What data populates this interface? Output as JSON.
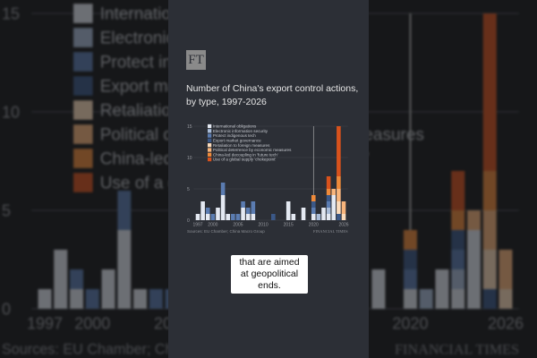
{
  "brand": {
    "logo": "FT",
    "footer": "FINANCIAL TIMES"
  },
  "caption": "that are aimed at geopolitical ends.",
  "chart_data": {
    "type": "bar",
    "stacked": true,
    "title": "Number of China's export control actions, by type, 1997-2026",
    "source": "Sources: EU Chamber; China Macro Group",
    "xlabel": "",
    "ylabel": "",
    "ylim": [
      0,
      15
    ],
    "yticks": [
      "0",
      "5",
      "10",
      "15"
    ],
    "xticks": [
      "1997",
      "2000",
      "2005",
      "2010",
      "2015",
      "2020",
      "2026"
    ],
    "grid": true,
    "legend_position": "top-left",
    "marker_year": 2020,
    "series": [
      {
        "name": "International obligations",
        "color": "#e4e9f2"
      },
      {
        "name": "Electronic information security",
        "color": "#a9bcd8"
      },
      {
        "name": "Protect indigenous tech",
        "color": "#5b7cb1"
      },
      {
        "name": "Export market governance",
        "color": "#3b5887"
      },
      {
        "name": "Retaliation to foreign measures",
        "color": "#fcdcbc"
      },
      {
        "name": "Political deterrence by economic measures",
        "color": "#f8b57c"
      },
      {
        "name": "China-led decoupling in 'future tech'",
        "color": "#ef8a3a"
      },
      {
        "name": "Use of a global supply 'chokepoint'",
        "color": "#d8521c"
      }
    ],
    "years": [
      1997,
      1998,
      1999,
      2000,
      2001,
      2002,
      2003,
      2004,
      2005,
      2006,
      2007,
      2008,
      2009,
      2010,
      2011,
      2012,
      2013,
      2014,
      2015,
      2016,
      2017,
      2018,
      2019,
      2020,
      2021,
      2022,
      2023,
      2024,
      2025,
      2026
    ],
    "values": [
      [
        1,
        0,
        0,
        0,
        0,
        0,
        0,
        0
      ],
      [
        3,
        0,
        0,
        0,
        0,
        0,
        0,
        0
      ],
      [
        1,
        0,
        1,
        0,
        0,
        0,
        0,
        0
      ],
      [
        0,
        0,
        1,
        0,
        0,
        0,
        0,
        0
      ],
      [
        2,
        0,
        0,
        0,
        0,
        0,
        0,
        0
      ],
      [
        4,
        0,
        2,
        0,
        0,
        0,
        0,
        0
      ],
      [
        1,
        0,
        0,
        0,
        0,
        0,
        0,
        0
      ],
      [
        0,
        0,
        1,
        0,
        0,
        0,
        0,
        0
      ],
      [
        0,
        0,
        1,
        0,
        0,
        0,
        0,
        0
      ],
      [
        2,
        0,
        1,
        0,
        0,
        0,
        0,
        0
      ],
      [
        1,
        0,
        1,
        0,
        0,
        0,
        0,
        0
      ],
      [
        1,
        0,
        2,
        0,
        0,
        0,
        0,
        0
      ],
      [
        0,
        0,
        0,
        0,
        0,
        0,
        0,
        0
      ],
      [
        0,
        0,
        0,
        0,
        0,
        0,
        0,
        0
      ],
      [
        0,
        0,
        0,
        0,
        0,
        0,
        0,
        0
      ],
      [
        0,
        0,
        0,
        1,
        0,
        0,
        0,
        0
      ],
      [
        0,
        0,
        0,
        0,
        0,
        0,
        0,
        0
      ],
      [
        0,
        0,
        0,
        0,
        0,
        0,
        0,
        0
      ],
      [
        3,
        0,
        0,
        0,
        0,
        0,
        0,
        0
      ],
      [
        1,
        0,
        0,
        0,
        0,
        0,
        0,
        0
      ],
      [
        0,
        0,
        0,
        0,
        0,
        0,
        0,
        0
      ],
      [
        2,
        0,
        0,
        0,
        0,
        0,
        0,
        0
      ],
      [
        0,
        0,
        0,
        0,
        0,
        0,
        0,
        0
      ],
      [
        1,
        0,
        1,
        1,
        0,
        0,
        1,
        0
      ],
      [
        0,
        1,
        0,
        0,
        0,
        0,
        0,
        0
      ],
      [
        2,
        0,
        0,
        0,
        0,
        0,
        0,
        0
      ],
      [
        1,
        1,
        1,
        1,
        0,
        0,
        1,
        2
      ],
      [
        4,
        0,
        0,
        0,
        0,
        1,
        0,
        0
      ],
      [
        0,
        0,
        0,
        1,
        2,
        2,
        2,
        8
      ],
      [
        0,
        0,
        0,
        0,
        1,
        2,
        0,
        0
      ]
    ]
  }
}
